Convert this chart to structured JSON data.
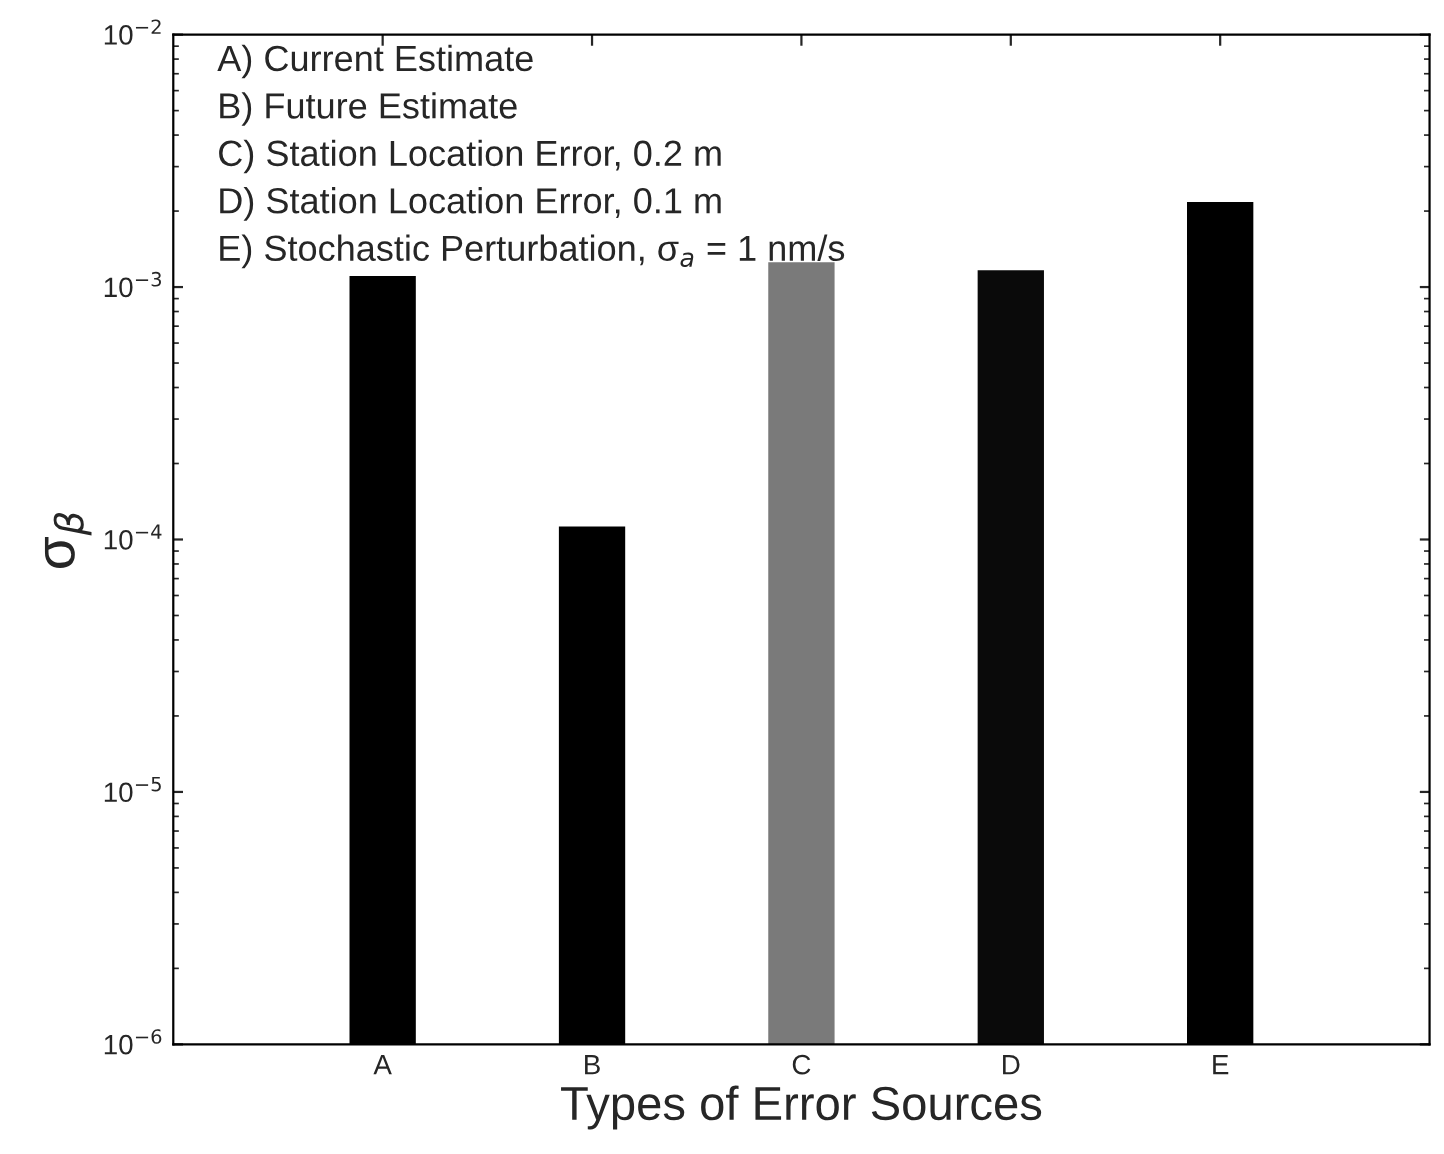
{
  "chart_data": {
    "type": "bar",
    "xlabel": "Types of Error Sources",
    "ylabel": "σ$_{β}$",
    "categories": [
      "A",
      "B",
      "C",
      "D",
      "E"
    ],
    "values": [
      0.00112,
      0.000114,
      0.00127,
      0.00118,
      0.0022
    ],
    "colors": [
      "#000000",
      "#000000",
      "#7a7a7a",
      "#0a0a0a",
      "#000000"
    ],
    "log": true,
    "ylim": [
      1e-06,
      0.01
    ],
    "yticks": [
      {
        "value": 1e-06,
        "label": "10$^{−6}$"
      },
      {
        "value": 1e-05,
        "label": "10$^{−5}$"
      },
      {
        "value": 0.0001,
        "label": "10$^{−4}$"
      },
      {
        "value": 0.001,
        "label": "10$^{−3}$"
      },
      {
        "value": 0.01,
        "label": "10$^{−2}$"
      }
    ],
    "grid": false,
    "legend": false,
    "annotations": [
      "A) Current Estimate",
      "B) Future Estimate",
      "C) Station Location Error, 0.2 m",
      "D) Station Location Error, 0.1 m",
      "E) Stochastic Perturbation, σ$_{a}$ = 1 nm/s"
    ]
  }
}
